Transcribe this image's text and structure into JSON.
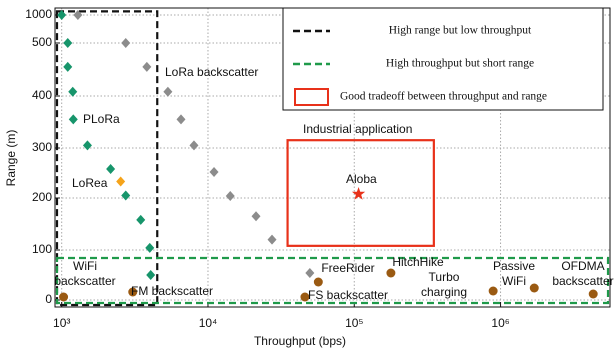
{
  "chart_data": {
    "type": "scatter",
    "xlabel": "Throughput (bps)",
    "ylabel": "Range (m)",
    "xscale": "log",
    "grid": true,
    "xlim": [
      900,
      5600000
    ],
    "ylim": [
      -15,
      1100
    ],
    "xticks": [
      {
        "value": 1000,
        "label": "10³"
      },
      {
        "value": 10000,
        "label": "10⁴"
      },
      {
        "value": 100000,
        "label": "10⁵"
      },
      {
        "value": 1000000,
        "label": "10⁶"
      }
    ],
    "yticks": [
      0,
      100,
      200,
      300,
      400,
      500,
      1000
    ],
    "series": [
      {
        "name": "PLoRa",
        "color": "#17956b",
        "marker": "diamond",
        "x": [
          1000,
          1100,
          1100,
          1190,
          1200,
          1500,
          2160,
          2740,
          3470,
          4000,
          4060
        ],
        "values": [
          1000,
          500,
          455,
          408,
          355,
          305,
          258,
          205,
          158,
          104,
          50
        ]
      },
      {
        "name": "LoRea",
        "color": "#f5a31a",
        "marker": "diamond",
        "x": [
          2530
        ],
        "values": [
          233
        ]
      },
      {
        "name": "LoRa backscatter",
        "color": "#8c8c8c",
        "marker": "diamond",
        "x": [
          1290,
          2740,
          3820,
          5320,
          6540,
          8020,
          11000,
          14200,
          21300,
          27400,
          49700
        ],
        "values": [
          1000,
          500,
          455,
          408,
          355,
          305,
          252,
          204,
          165,
          120,
          54
        ]
      },
      {
        "name": "Aloba",
        "color": "#e8311a",
        "marker": "star",
        "x": [
          107000
        ],
        "values": [
          208
        ]
      },
      {
        "color": "#9a5a12",
        "marker": "circle",
        "x": [
          1030,
          3060,
          46000,
          56800,
          178000,
          890000,
          1700000,
          4300000
        ],
        "values": [
          6,
          16,
          6,
          36,
          54,
          18,
          24,
          12
        ],
        "labels": [
          [
            "WiFi",
            "backscatter"
          ],
          [
            "FM backscatter"
          ],
          [
            "FS backscatter"
          ],
          [
            "FreeRider"
          ],
          [
            "HitchHike"
          ],
          [
            "Turbo",
            "charging"
          ],
          [
            "Passive",
            "WiFi"
          ],
          [
            "OFDMA",
            "backscatter"
          ]
        ]
      }
    ],
    "regions": [
      {
        "label": "High range but low throughput",
        "color": "#111111",
        "style": "dashed",
        "xrange": [
          900,
          4500
        ],
        "yrange": [
          -15,
          1100
        ]
      },
      {
        "label": "High throughput but short range",
        "color": "#1f9a4a",
        "style": "dashed",
        "xrange": [
          900,
          5600000
        ],
        "yrange": [
          -10,
          88
        ]
      },
      {
        "label": "Good tradeoff between throughput and range",
        "color": "#e8311a",
        "style": "solid",
        "xrange": [
          35000,
          350000
        ],
        "yrange": [
          108,
          315
        ]
      }
    ],
    "annotations": [
      "Industrial application"
    ]
  }
}
